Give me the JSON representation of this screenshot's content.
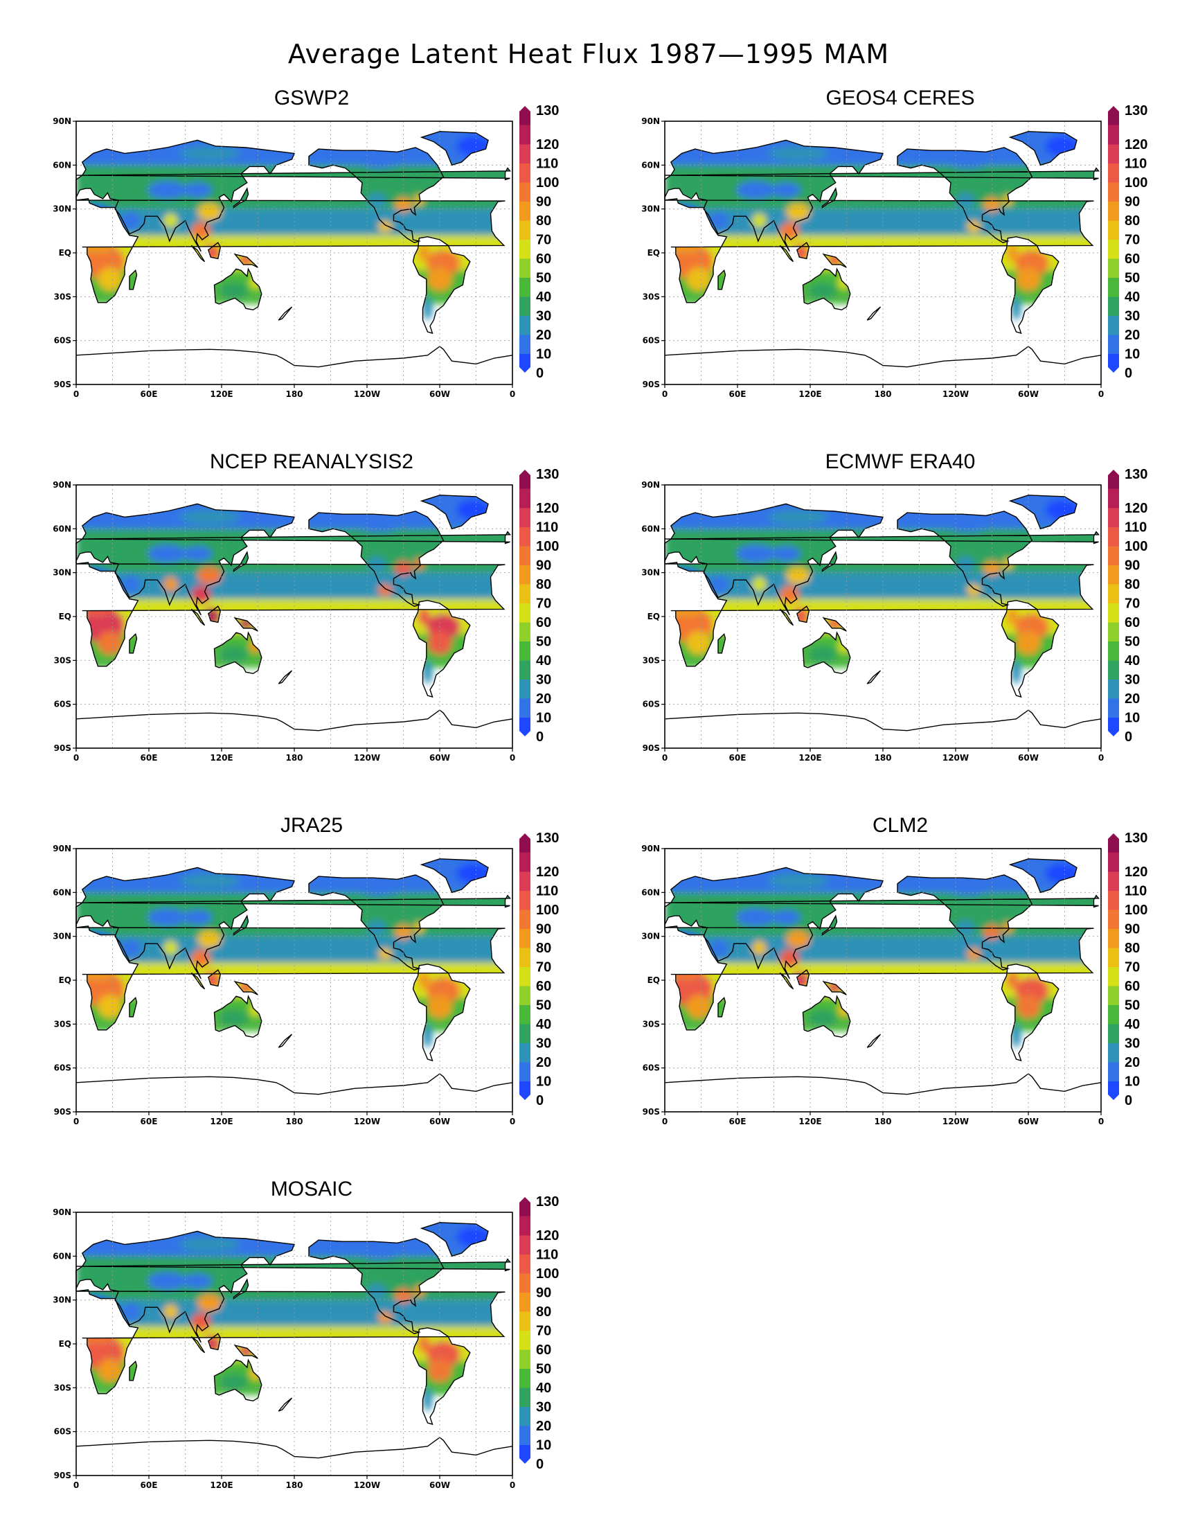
{
  "title": "Average Latent Heat Flux 1987—1995  MAM",
  "lat_ticks": [
    "90N",
    "60N",
    "30N",
    "EQ",
    "30S",
    "60S",
    "90S"
  ],
  "lon_ticks": [
    "0",
    "60E",
    "120E",
    "180",
    "120W",
    "60W",
    "0"
  ],
  "colorbar": {
    "levels": [
      "0",
      "10",
      "20",
      "30",
      "40",
      "50",
      "60",
      "70",
      "80",
      "90",
      "100",
      "110",
      "120",
      "130"
    ],
    "colors": [
      "#1e48ff",
      "#3273e8",
      "#2f92b8",
      "#2fa35f",
      "#49b83a",
      "#8fd12a",
      "#d6e017",
      "#ecbf14",
      "#f29a1e",
      "#f27733",
      "#ec5a45",
      "#db3d55",
      "#b81e56",
      "#8e0e4f"
    ]
  },
  "panels": [
    {
      "title": "GSWP2",
      "intensity": 0.55
    },
    {
      "title": "GEOS4 CERES",
      "intensity": 0.6
    },
    {
      "title": "NCEP REANALYSIS2",
      "intensity": 0.8
    },
    {
      "title": "ECMWF ERA40",
      "intensity": 0.55
    },
    {
      "title": "JRA25",
      "intensity": 0.55
    },
    {
      "title": "CLM2",
      "intensity": 0.7
    },
    {
      "title": "MOSAIC",
      "intensity": 0.75
    }
  ]
}
